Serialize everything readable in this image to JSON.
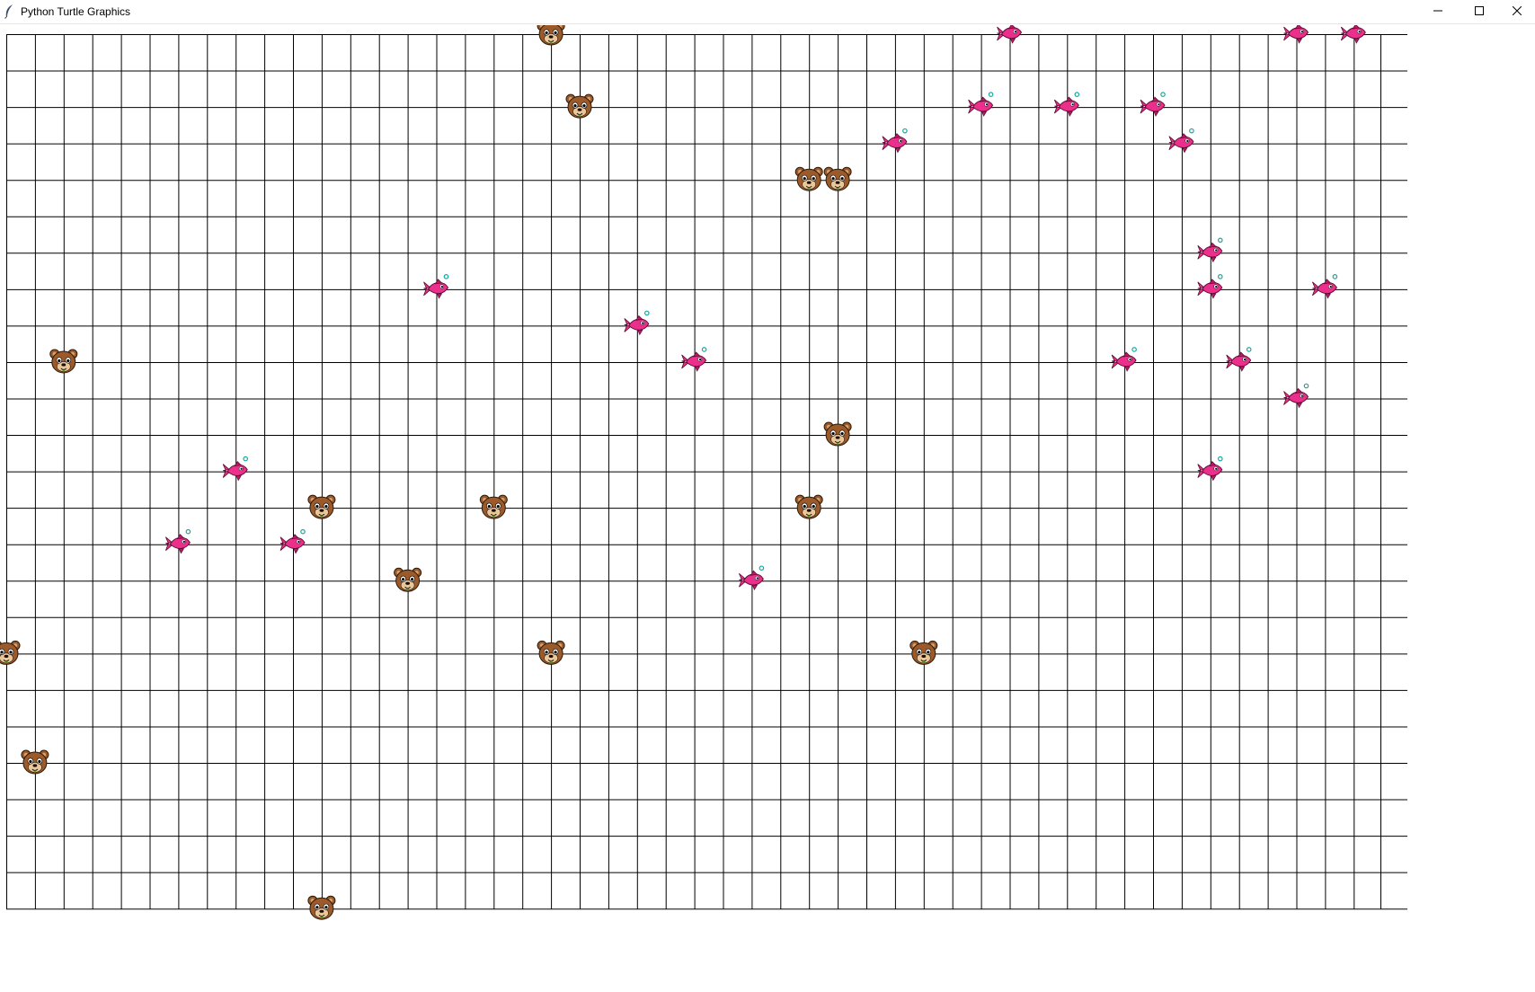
{
  "window": {
    "title": "Python Turtle Graphics",
    "icon": "feather-icon",
    "controls": [
      "minimize-icon",
      "maximize-icon",
      "close-icon"
    ]
  },
  "colors": {
    "canvas_background": "#ffffff",
    "grid_line": "#000000",
    "bear_fur": "#9c5a2a",
    "bear_muzzle": "#e9c79a",
    "fish_body": "#ec2f8c",
    "fish_fin": "#b81a66",
    "bubble": "#12a8a0"
  },
  "simulation": {
    "grid_columns": 48,
    "grid_rows": 24,
    "bear_icon": "bear-face-icon",
    "fish_icon": "pink-fish-icon",
    "bears": [
      {
        "col": 19,
        "row": 0
      },
      {
        "col": 20,
        "row": 2
      },
      {
        "col": 28,
        "row": 4
      },
      {
        "col": 29,
        "row": 4
      },
      {
        "col": 2,
        "row": 9
      },
      {
        "col": 29,
        "row": 11
      },
      {
        "col": 11,
        "row": 13
      },
      {
        "col": 17,
        "row": 13
      },
      {
        "col": 28,
        "row": 13
      },
      {
        "col": 14,
        "row": 15
      },
      {
        "col": 0,
        "row": 17
      },
      {
        "col": 19,
        "row": 17
      },
      {
        "col": 32,
        "row": 17
      },
      {
        "col": 1,
        "row": 20
      },
      {
        "col": 11,
        "row": 24
      }
    ],
    "fish": [
      {
        "col": 35,
        "row": 0
      },
      {
        "col": 45,
        "row": 0
      },
      {
        "col": 47,
        "row": 0
      },
      {
        "col": 34,
        "row": 2
      },
      {
        "col": 37,
        "row": 2
      },
      {
        "col": 40,
        "row": 2
      },
      {
        "col": 31,
        "row": 3
      },
      {
        "col": 41,
        "row": 3
      },
      {
        "col": 42,
        "row": 6
      },
      {
        "col": 15,
        "row": 7
      },
      {
        "col": 42,
        "row": 7
      },
      {
        "col": 46,
        "row": 7
      },
      {
        "col": 22,
        "row": 8
      },
      {
        "col": 24,
        "row": 9
      },
      {
        "col": 39,
        "row": 9
      },
      {
        "col": 43,
        "row": 9
      },
      {
        "col": 45,
        "row": 10
      },
      {
        "col": 8,
        "row": 12
      },
      {
        "col": 42,
        "row": 12
      },
      {
        "col": 6,
        "row": 14
      },
      {
        "col": 10,
        "row": 14
      },
      {
        "col": 26,
        "row": 15
      }
    ]
  }
}
